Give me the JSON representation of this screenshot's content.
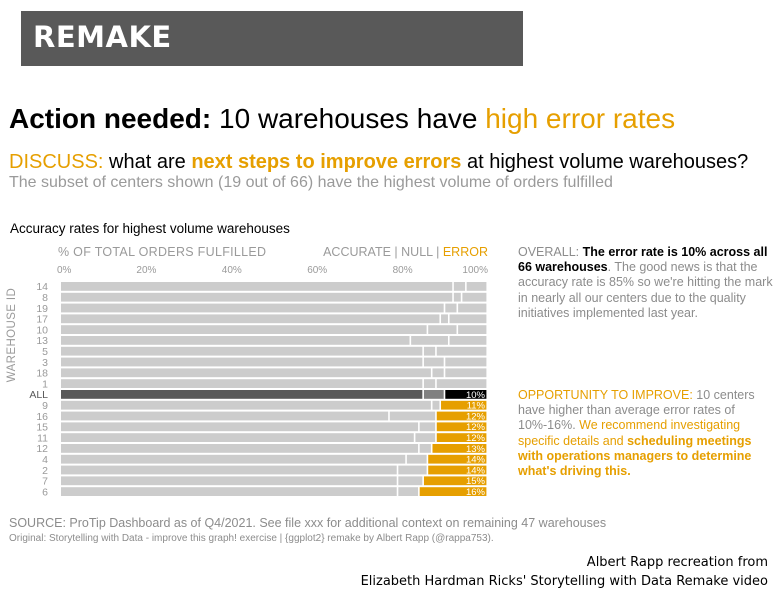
{
  "banner": {
    "text": "REMAKE"
  },
  "headline": {
    "bold": "Action needed:",
    "middle": "10 warehouses have",
    "highlight": "high error rates"
  },
  "discuss": {
    "label": "DISCUSS:",
    "pre": "what are",
    "highlight": "next steps to improve errors",
    "post": "at highest volume warehouses?"
  },
  "subset": {
    "text": "The subset of centers shown (19 out of 66) have the highest volume of orders fulfilled"
  },
  "chart_title": "Accuracy rates for highest volume warehouses",
  "overall": {
    "label": "OVERALL:",
    "bold": "The error rate is 10% across all 66 warehouses",
    "rest": ". The good news is that the accuracy rate is 85% so we're hitting the mark in nearly all our centers due to the quality initiatives implemented last year."
  },
  "opportunity": {
    "label": "OPPORTUNITY TO IMPROVE:",
    "text1": "10 centers have higher than average error rates of 10%-16%.",
    "text2": "We recommend investigating specific details and",
    "bold": "scheduling meetings with operations managers to determine what's driving this."
  },
  "source": "SOURCE: ProTip Dashboard as of Q4/2021. See file xxx for additional context on remaining 47 warehouses",
  "original": "Original: Storytelling with Data - improve this graph! exercise | {ggplot2} remake by Albert Rapp (@rappa753).",
  "credit": {
    "line1": "Albert Rapp recreation from",
    "line2": "Elizabeth Hardman Ricks' Storytelling with Data Remake video"
  },
  "chart_data": {
    "type": "bar",
    "orientation": "horizontal",
    "stacked": true,
    "xlabel": "% OF TOTAL ORDERS FULFILLED",
    "ylabel": "WAREHOUSE ID",
    "legend": {
      "accurate": "ACCURATE",
      "sep": "|",
      "null": "NULL",
      "error": "ERROR"
    },
    "x_ticks": [
      "0%",
      "20%",
      "40%",
      "60%",
      "80%",
      "100%"
    ],
    "xlim": [
      0,
      100
    ],
    "categories": [
      "14",
      "8",
      "19",
      "17",
      "10",
      "13",
      "5",
      "3",
      "18",
      "1",
      "ALL",
      "9",
      "16",
      "15",
      "11",
      "12",
      "4",
      "2",
      "7",
      "6"
    ],
    "series": [
      {
        "name": "ACCURATE",
        "values": [
          92,
          92,
          90,
          89,
          86,
          82,
          85,
          85,
          87,
          85,
          85,
          87,
          77,
          84,
          83,
          84,
          81,
          79,
          79,
          79
        ]
      },
      {
        "name": "NULL",
        "values": [
          3,
          2,
          3,
          2,
          7,
          9,
          3,
          5,
          3,
          3,
          5,
          2,
          11,
          4,
          5,
          3,
          5,
          7,
          6,
          5
        ]
      },
      {
        "name": "ERROR",
        "values": [
          5,
          6,
          7,
          9,
          7,
          9,
          12,
          10,
          10,
          12,
          10,
          11,
          12,
          12,
          12,
          13,
          14,
          14,
          15,
          16
        ]
      }
    ],
    "error_labels": [
      "",
      "",
      "",
      "",
      "",
      "",
      "",
      "",
      "",
      "",
      "10%",
      "11%",
      "12%",
      "12%",
      "12%",
      "13%",
      "14%",
      "14%",
      "15%",
      "16%"
    ],
    "highlighted": [
      "9",
      "16",
      "15",
      "11",
      "12",
      "4",
      "2",
      "7",
      "6"
    ],
    "colors": {
      "gray": "#cccccc",
      "highlight": "#E69F00",
      "all_accurate": "#595959",
      "all_null": "#808080",
      "all_error": "#000000",
      "axis_text": "#9a9a9a"
    }
  }
}
